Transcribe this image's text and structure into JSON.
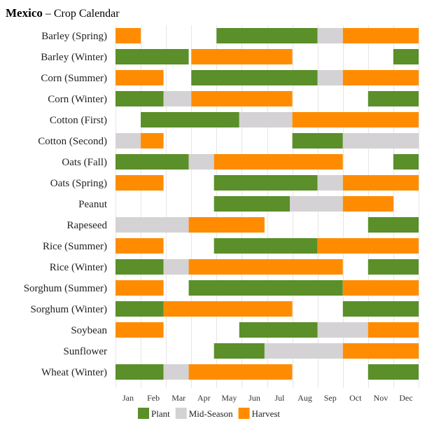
{
  "chart_data": {
    "type": "bar",
    "subtype": "gantt",
    "title": "Mexico",
    "subtitle": "Crop Calendar",
    "x_domain": [
      0,
      12
    ],
    "months": [
      "Jan",
      "Feb",
      "Mar",
      "Apr",
      "May",
      "Jun",
      "Jul",
      "Aug",
      "Sep",
      "Oct",
      "Nov",
      "Dec"
    ],
    "stages": [
      {
        "key": "plant",
        "label": "Plant",
        "color": "#5a8f29"
      },
      {
        "key": "mid",
        "label": "Mid-Season",
        "color": "#d4d2d4"
      },
      {
        "key": "harvest",
        "label": "Harvest",
        "color": "#ff8c00"
      }
    ],
    "crops": [
      {
        "name": "Barley (Spring)",
        "segments": [
          {
            "stage": "harvest",
            "start": 0.0,
            "end": 1.0
          },
          {
            "stage": "plant",
            "start": 4.0,
            "end": 8.0
          },
          {
            "stage": "mid",
            "start": 8.0,
            "end": 9.0
          },
          {
            "stage": "harvest",
            "start": 9.0,
            "end": 12.0
          }
        ]
      },
      {
        "name": "Barley (Winter)",
        "segments": [
          {
            "stage": "plant",
            "start": 0.0,
            "end": 2.9
          },
          {
            "stage": "harvest",
            "start": 3.0,
            "end": 7.0
          },
          {
            "stage": "plant",
            "start": 11.0,
            "end": 12.0
          }
        ]
      },
      {
        "name": "Corn (Summer)",
        "segments": [
          {
            "stage": "harvest",
            "start": 0.0,
            "end": 1.9
          },
          {
            "stage": "plant",
            "start": 3.0,
            "end": 8.0
          },
          {
            "stage": "mid",
            "start": 8.0,
            "end": 9.0
          },
          {
            "stage": "harvest",
            "start": 9.0,
            "end": 12.0
          }
        ]
      },
      {
        "name": "Corn (Winter)",
        "segments": [
          {
            "stage": "plant",
            "start": 0.0,
            "end": 1.9
          },
          {
            "stage": "mid",
            "start": 1.9,
            "end": 3.0
          },
          {
            "stage": "harvest",
            "start": 3.0,
            "end": 7.0
          },
          {
            "stage": "plant",
            "start": 10.0,
            "end": 12.0
          }
        ]
      },
      {
        "name": "Cotton (First)",
        "segments": [
          {
            "stage": "plant",
            "start": 1.0,
            "end": 4.9
          },
          {
            "stage": "mid",
            "start": 4.9,
            "end": 7.0
          },
          {
            "stage": "harvest",
            "start": 7.0,
            "end": 12.0
          }
        ]
      },
      {
        "name": "Cotton (Second)",
        "segments": [
          {
            "stage": "mid",
            "start": 0.0,
            "end": 1.0
          },
          {
            "stage": "harvest",
            "start": 1.0,
            "end": 1.9
          },
          {
            "stage": "plant",
            "start": 7.0,
            "end": 9.0
          },
          {
            "stage": "mid",
            "start": 9.0,
            "end": 12.0
          }
        ]
      },
      {
        "name": "Oats (Fall)",
        "segments": [
          {
            "stage": "plant",
            "start": 0.0,
            "end": 2.9
          },
          {
            "stage": "mid",
            "start": 2.9,
            "end": 3.9
          },
          {
            "stage": "harvest",
            "start": 3.9,
            "end": 9.0
          },
          {
            "stage": "plant",
            "start": 11.0,
            "end": 12.0
          }
        ]
      },
      {
        "name": "Oats (Spring)",
        "segments": [
          {
            "stage": "harvest",
            "start": 0.0,
            "end": 1.9
          },
          {
            "stage": "plant",
            "start": 3.9,
            "end": 8.0
          },
          {
            "stage": "mid",
            "start": 8.0,
            "end": 9.0
          },
          {
            "stage": "harvest",
            "start": 9.0,
            "end": 12.0
          }
        ]
      },
      {
        "name": "Peanut",
        "segments": [
          {
            "stage": "plant",
            "start": 3.9,
            "end": 6.9
          },
          {
            "stage": "mid",
            "start": 6.9,
            "end": 9.0
          },
          {
            "stage": "harvest",
            "start": 9.0,
            "end": 11.0
          }
        ]
      },
      {
        "name": "Rapeseed",
        "segments": [
          {
            "stage": "mid",
            "start": 0.0,
            "end": 2.9
          },
          {
            "stage": "harvest",
            "start": 2.9,
            "end": 5.9
          },
          {
            "stage": "plant",
            "start": 10.0,
            "end": 12.0
          }
        ]
      },
      {
        "name": "Rice (Summer)",
        "segments": [
          {
            "stage": "harvest",
            "start": 0.0,
            "end": 1.9
          },
          {
            "stage": "plant",
            "start": 3.9,
            "end": 8.0
          },
          {
            "stage": "harvest",
            "start": 8.0,
            "end": 12.0
          }
        ]
      },
      {
        "name": "Rice (Winter)",
        "segments": [
          {
            "stage": "plant",
            "start": 0.0,
            "end": 1.9
          },
          {
            "stage": "mid",
            "start": 1.9,
            "end": 2.9
          },
          {
            "stage": "harvest",
            "start": 2.9,
            "end": 9.0
          },
          {
            "stage": "plant",
            "start": 10.0,
            "end": 12.0
          }
        ]
      },
      {
        "name": "Sorghum (Summer)",
        "segments": [
          {
            "stage": "harvest",
            "start": 0.0,
            "end": 1.9
          },
          {
            "stage": "plant",
            "start": 2.9,
            "end": 9.0
          },
          {
            "stage": "harvest",
            "start": 9.0,
            "end": 12.0
          }
        ]
      },
      {
        "name": "Sorghum (Winter)",
        "segments": [
          {
            "stage": "plant",
            "start": 0.0,
            "end": 1.9
          },
          {
            "stage": "harvest",
            "start": 1.9,
            "end": 7.0
          },
          {
            "stage": "plant",
            "start": 9.0,
            "end": 12.0
          }
        ]
      },
      {
        "name": "Soybean",
        "segments": [
          {
            "stage": "harvest",
            "start": 0.0,
            "end": 1.9
          },
          {
            "stage": "plant",
            "start": 4.9,
            "end": 8.0
          },
          {
            "stage": "mid",
            "start": 8.0,
            "end": 10.0
          },
          {
            "stage": "harvest",
            "start": 10.0,
            "end": 12.0
          }
        ]
      },
      {
        "name": "Sunflower",
        "segments": [
          {
            "stage": "plant",
            "start": 3.9,
            "end": 5.9
          },
          {
            "stage": "mid",
            "start": 5.9,
            "end": 9.0
          },
          {
            "stage": "harvest",
            "start": 9.0,
            "end": 12.0
          }
        ]
      },
      {
        "name": "Wheat (Winter)",
        "segments": [
          {
            "stage": "plant",
            "start": 0.0,
            "end": 1.9
          },
          {
            "stage": "mid",
            "start": 1.9,
            "end": 2.9
          },
          {
            "stage": "harvest",
            "start": 2.9,
            "end": 7.0
          },
          {
            "stage": "plant",
            "start": 10.0,
            "end": 12.0
          }
        ]
      }
    ]
  }
}
